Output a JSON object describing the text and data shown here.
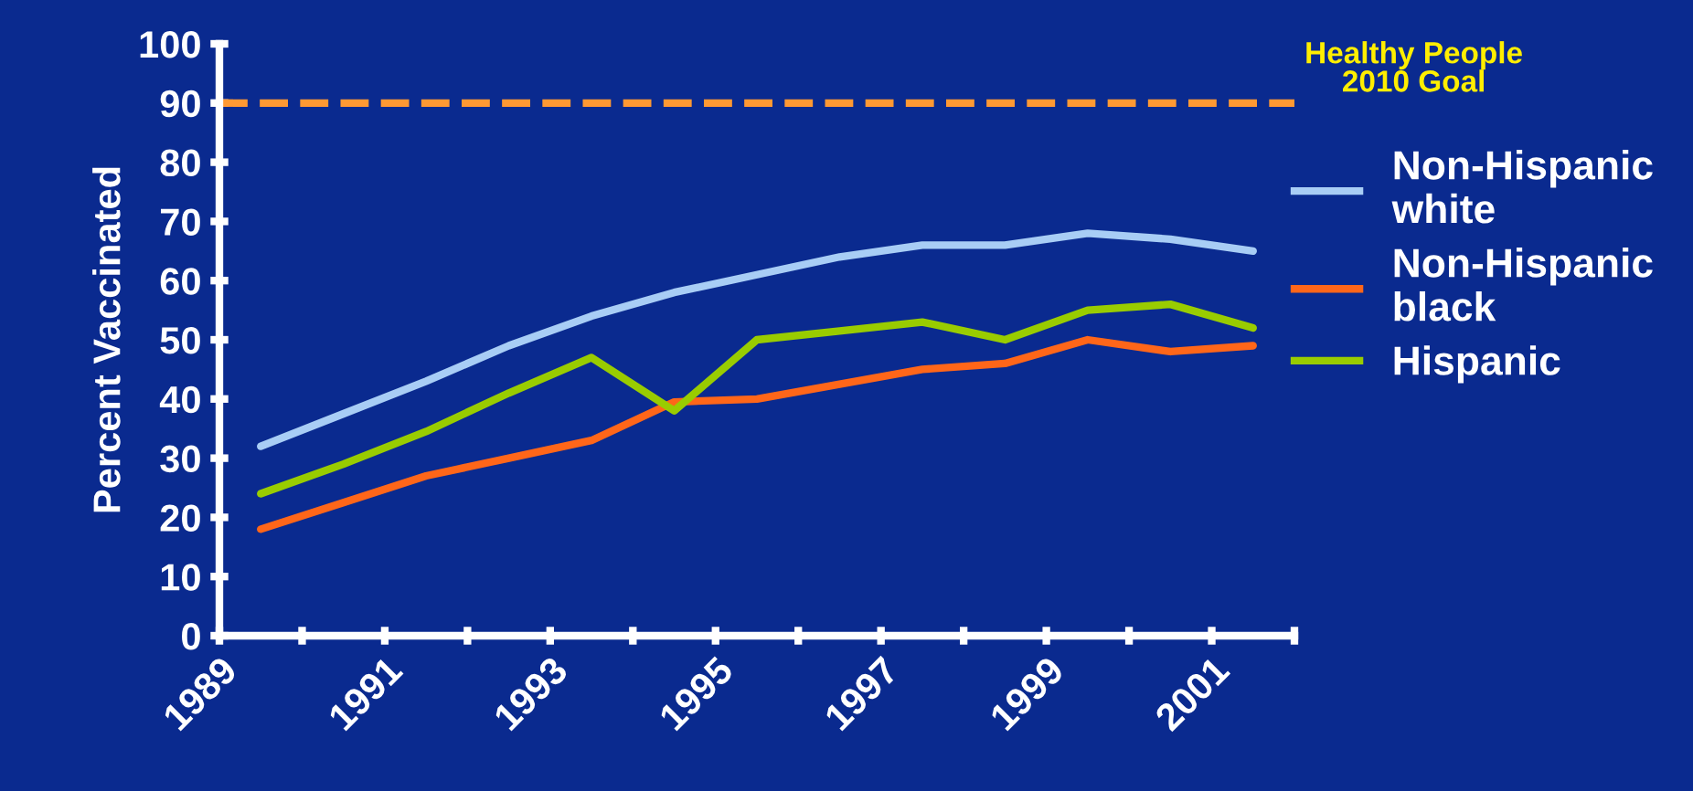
{
  "chart_data": {
    "type": "line",
    "ylabel": "Percent Vaccinated",
    "x": [
      1989.5,
      1990.5,
      1991.5,
      1992.5,
      1993.5,
      1994.5,
      1995.5,
      1996.5,
      1997.5,
      1998.5,
      1999.5,
      2000.5,
      2001.5
    ],
    "series": [
      {
        "name": "Non-Hispanic white",
        "color": "#a8cdf5",
        "values": [
          32,
          37.5,
          43,
          49,
          54,
          58,
          61,
          64,
          66,
          66,
          68,
          67,
          65
        ]
      },
      {
        "name": "Non-Hispanic black",
        "color": "#ff6619",
        "values": [
          18,
          22.5,
          27,
          30,
          33,
          39.5,
          40,
          42.5,
          45,
          46,
          50,
          48,
          49
        ]
      },
      {
        "name": "Hispanic",
        "color": "#99cc00",
        "values": [
          24,
          29,
          34.5,
          41,
          47,
          38,
          50,
          51.5,
          53,
          50,
          55,
          56,
          52
        ]
      }
    ],
    "xlim": [
      1989,
      2002
    ],
    "xticks": [
      1989,
      {
        "value": 1990,
        "label": null
      },
      1991,
      {
        "value": 1992,
        "label": null
      },
      1993,
      {
        "value": 1994,
        "label": null
      },
      1995,
      {
        "value": 1996,
        "label": null
      },
      1997,
      {
        "value": 1998,
        "label": null
      },
      1999,
      {
        "value": 2000,
        "label": null
      },
      2001,
      {
        "value": 2002,
        "label": null
      }
    ],
    "ylim": [
      0,
      100
    ],
    "yticks": [
      0,
      10,
      20,
      30,
      40,
      50,
      60,
      70,
      80,
      90,
      100
    ],
    "ref_lines": [
      {
        "axis": "y",
        "value": 90,
        "label": "Healthy People\n2010 Goal",
        "color": "#ff9933",
        "line_style": "dashed"
      }
    ],
    "grid": false,
    "legend": "right",
    "marker": "none",
    "line_style": "solid"
  }
}
